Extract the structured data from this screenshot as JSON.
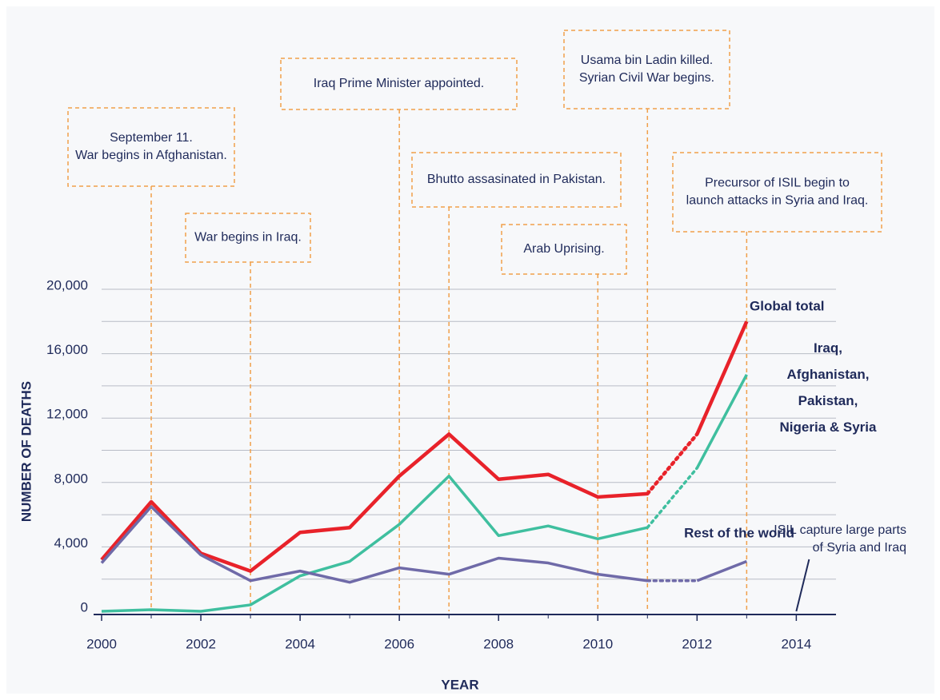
{
  "chart_data": {
    "type": "line",
    "x": [
      2000,
      2001,
      2002,
      2003,
      2004,
      2005,
      2006,
      2007,
      2008,
      2009,
      2010,
      2011,
      2012,
      2013
    ],
    "series": [
      {
        "name": "Global total",
        "color": "#e8222a",
        "values": [
          3200,
          6800,
          3600,
          2500,
          4900,
          5200,
          8400,
          11000,
          8200,
          8500,
          7100,
          7300,
          11000,
          18000
        ]
      },
      {
        "name": "Iraq, Afghanistan, Pakistan, Nigeria & Syria",
        "color": "#3fbf9f",
        "values": [
          0,
          100,
          0,
          400,
          2200,
          3100,
          5400,
          8400,
          4700,
          5300,
          4500,
          5200,
          8900,
          14700
        ]
      },
      {
        "name": "Rest of the world",
        "color": "#6f6aa8",
        "values": [
          3000,
          6500,
          3500,
          1900,
          2500,
          1800,
          2700,
          2300,
          3300,
          3000,
          2300,
          1900,
          1900,
          3100
        ]
      }
    ],
    "dotted_x": [
      2011,
      2012
    ],
    "xlim": [
      2000,
      2014.8
    ],
    "xticks": [
      2000,
      2002,
      2004,
      2006,
      2008,
      2010,
      2012,
      2014
    ],
    "ylim": [
      0,
      20000
    ],
    "yticks": [
      0,
      {
        "value": 4000,
        "label": "4,000"
      },
      {
        "value": 8000,
        "label": "8,000"
      },
      {
        "value": 12000,
        "label": "12,000"
      },
      {
        "value": 16000,
        "label": "16,000"
      },
      {
        "value": 20000,
        "label": "20,000"
      }
    ],
    "y_minor_ticks": [
      2000,
      6000,
      10000,
      14000,
      18000
    ],
    "grid": true,
    "xlabel": "YEAR",
    "ylabel": "NUMBER OF DEATHS",
    "annotations": [
      {
        "x": 2001,
        "text": [
          "September 11.",
          "War begins in Afghanistan."
        ]
      },
      {
        "x": 2003,
        "text": [
          "War begins in Iraq."
        ]
      },
      {
        "x": 2006,
        "text": [
          "Iraq Prime Minister appointed."
        ]
      },
      {
        "x": 2007,
        "text": [
          "Bhutto assasinated in Pakistan."
        ]
      },
      {
        "x": 2010,
        "text": [
          "Arab Uprising."
        ]
      },
      {
        "x": 2011,
        "text": [
          "Usama bin Ladin killed.",
          "Syrian Civil War begins."
        ]
      },
      {
        "x": 2013,
        "text": [
          "Precursor of ISIL begin to",
          "launch attacks in Syria and Iraq."
        ]
      },
      {
        "x": 2014,
        "text": [
          "ISIL capture large parts",
          "of Syria and Iraq"
        ]
      }
    ]
  }
}
